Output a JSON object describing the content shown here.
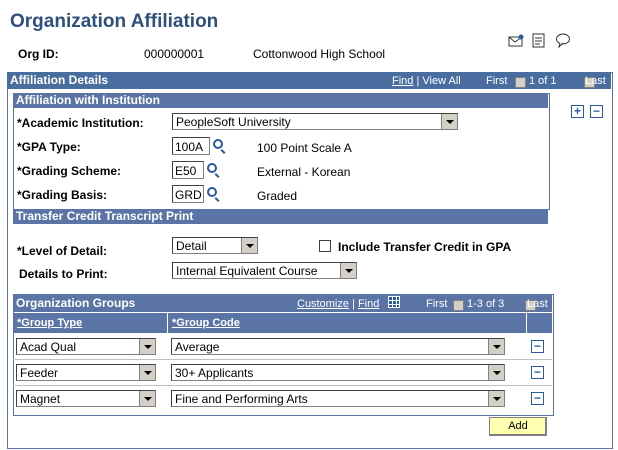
{
  "page": {
    "title": "Organization Affiliation"
  },
  "org": {
    "id_label": "Org ID:",
    "id_value": "000000001",
    "name": "Cottonwood High School"
  },
  "details": {
    "header": "Affiliation Details",
    "nav_find": "Find",
    "nav_viewall": "View All",
    "nav_first": "First",
    "nav_range": "1 of 1",
    "nav_last": "Last"
  },
  "institution": {
    "header": "Affiliation with Institution",
    "academic_label": "*Academic Institution:",
    "academic_value": "PeopleSoft University",
    "gpa_label": "*GPA Type:",
    "gpa_value": "100A",
    "gpa_desc": "100 Point Scale A",
    "scheme_label": "*Grading Scheme:",
    "scheme_value": "E50",
    "scheme_desc": "External - Korean",
    "basis_label": "*Grading Basis:",
    "basis_value": "GRD",
    "basis_desc": "Graded"
  },
  "transfer": {
    "header": "Transfer Credit Transcript Print",
    "level_label": "*Level of Detail:",
    "level_value": "Detail",
    "include_label": "Include Transfer Credit in GPA",
    "print_label": "Details to Print:",
    "print_value": "Internal Equivalent Course"
  },
  "groups": {
    "header": "Organization Groups",
    "customize": "Customize",
    "find": "Find",
    "first": "First",
    "range": "1-3 of 3",
    "last": "Last",
    "col_type": "*Group Type",
    "col_code": "*Group Code",
    "rows": [
      {
        "type": "Acad Qual",
        "code": "Average"
      },
      {
        "type": "Feeder",
        "code": "30+ Applicants"
      },
      {
        "type": "Magnet",
        "code": "Fine and Performing Arts"
      }
    ],
    "add_label": "Add"
  }
}
